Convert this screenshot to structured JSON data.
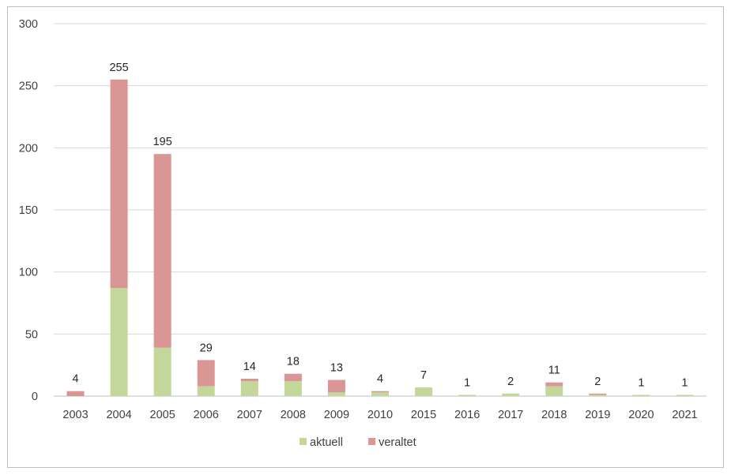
{
  "chart_data": {
    "type": "bar",
    "stacked": true,
    "categories": [
      "2003",
      "2004",
      "2005",
      "2006",
      "2007",
      "2008",
      "2009",
      "2010",
      "2015",
      "2016",
      "2017",
      "2018",
      "2019",
      "2020",
      "2021"
    ],
    "series": [
      {
        "name": "aktuell",
        "color": "#c4d79b",
        "values": [
          0,
          87,
          39,
          8,
          12,
          12,
          3,
          3,
          7,
          1,
          2,
          8,
          1,
          1,
          1
        ]
      },
      {
        "name": "veraltet",
        "color": "#da9694",
        "values": [
          4,
          168,
          156,
          21,
          2,
          6,
          10,
          1,
          0,
          0,
          0,
          3,
          1,
          0,
          0
        ]
      }
    ],
    "totals": [
      "4",
      "255",
      "195",
      "29",
      "14",
      "18",
      "13",
      "4",
      "7",
      "1",
      "2",
      "11",
      "2",
      "1",
      "1"
    ],
    "y_ticks": [
      "0",
      "50",
      "100",
      "150",
      "200",
      "250",
      "300"
    ],
    "ylim": [
      0,
      300
    ],
    "grid": true,
    "legend_position": "bottom",
    "title": "",
    "xlabel": "",
    "ylabel": ""
  }
}
